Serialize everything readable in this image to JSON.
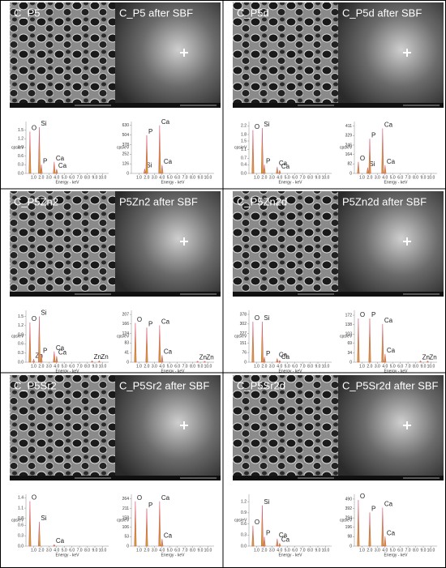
{
  "spectrum_axis": {
    "xlim": [
      0,
      10.8
    ],
    "xticks": [
      {
        "value": 1,
        "label": "1.0"
      },
      {
        "value": 2,
        "label": "2.0"
      },
      {
        "value": 3,
        "label": "3.0"
      },
      {
        "value": 4,
        "label": "4.0"
      },
      {
        "value": 5,
        "label": "5.0"
      },
      {
        "value": 6,
        "label": "6.0"
      },
      {
        "value": 7,
        "label": "7.0"
      },
      {
        "value": 8,
        "label": "8.0"
      },
      {
        "value": 9,
        "label": "9.0"
      },
      {
        "value": 10,
        "label": "10.0"
      }
    ],
    "xlabel": "Energy - keV",
    "ylabel": "cps/eV",
    "line_color": "#d9556e",
    "fill_color": "#c9a227"
  },
  "panels": [
    {
      "images": [
        {
          "label": "C_P5"
        },
        {
          "label": "C_P5 after SBF"
        }
      ],
      "spectra": [
        {
          "ylim": [
            0,
            1.8
          ],
          "yticks": [
            {
              "value": 0,
              "label": "0.0"
            },
            0.3,
            0.6,
            0.9,
            1.2,
            1.5
          ],
          "peaks": [
            {
              "label": "O",
              "energy": 0.52,
              "height": 1.45
            },
            {
              "label": "Si",
              "energy": 1.74,
              "height": 1.6
            },
            {
              "label": "P",
              "energy": 2.01,
              "height": 0.3
            },
            {
              "label": "Ca",
              "energy": 3.69,
              "height": 0.4
            },
            {
              "label": "Ca",
              "energy": 4.01,
              "height": 0.15
            }
          ]
        },
        {
          "ylim": [
            0,
            680
          ],
          "yticks": [
            0,
            126,
            252,
            378,
            504,
            630
          ],
          "peaks": [
            {
              "label": "Si",
              "energy": 1.74,
              "height": 60
            },
            {
              "label": "P",
              "energy": 2.01,
              "height": 500
            },
            {
              "label": "Ca",
              "energy": 3.69,
              "height": 630
            },
            {
              "label": "Ca",
              "energy": 4.01,
              "height": 110
            }
          ]
        }
      ]
    },
    {
      "images": [
        {
          "label": "C_P5d"
        },
        {
          "label": "C_P5d after SBF"
        }
      ],
      "spectra": [
        {
          "ylim": [
            0,
            2.4
          ],
          "yticks": [
            {
              "value": 0,
              "label": "0.0"
            },
            0.4,
            0.7,
            1.1,
            1.5,
            1.8,
            2.2
          ],
          "peaks": [
            {
              "label": "O",
              "energy": 0.52,
              "height": 2.0
            },
            {
              "label": "Si",
              "energy": 1.74,
              "height": 2.1
            },
            {
              "label": "P",
              "energy": 2.01,
              "height": 0.4
            },
            {
              "label": "Ca",
              "energy": 3.69,
              "height": 0.3
            },
            {
              "label": "Ca",
              "energy": 4.01,
              "height": 0.15
            }
          ]
        },
        {
          "ylim": [
            0,
            450
          ],
          "yticks": [
            0,
            82,
            164,
            246,
            329,
            411
          ],
          "peaks": [
            {
              "label": "O",
              "energy": 0.52,
              "height": 100
            },
            {
              "label": "Si",
              "energy": 1.74,
              "height": 50
            },
            {
              "label": "P",
              "energy": 2.01,
              "height": 300
            },
            {
              "label": "Ca",
              "energy": 3.69,
              "height": 390
            },
            {
              "label": "Ca",
              "energy": 4.01,
              "height": 70
            }
          ]
        }
      ]
    },
    {
      "images": [
        {
          "label": "C_P5Zn2"
        },
        {
          "label": "P5Zn2 after SBF"
        }
      ],
      "spectra": [
        {
          "ylim": [
            0,
            1.7
          ],
          "yticks": [
            {
              "value": 0,
              "label": "0.0"
            },
            0.3,
            0.6,
            0.9,
            1.2,
            1.5
          ],
          "peaks": [
            {
              "label": "O",
              "energy": 0.52,
              "height": 1.3
            },
            {
              "label": "Zn",
              "energy": 1.01,
              "height": 0.1
            },
            {
              "label": "Si",
              "energy": 1.74,
              "height": 1.5
            },
            {
              "label": "P",
              "energy": 2.01,
              "height": 0.25
            },
            {
              "label": "Ca",
              "energy": 3.69,
              "height": 0.35
            },
            {
              "label": "Ca",
              "energy": 4.01,
              "height": 0.2
            },
            {
              "label": "Zn",
              "energy": 8.64,
              "height": 0.05
            },
            {
              "label": "Zn",
              "energy": 9.57,
              "height": 0.05
            }
          ]
        },
        {
          "ylim": [
            0,
            225
          ],
          "yticks": [
            0,
            41,
            83,
            124,
            166,
            207
          ],
          "peaks": [
            {
              "label": "O",
              "energy": 0.52,
              "height": 170
            },
            {
              "label": "P",
              "energy": 2.01,
              "height": 150
            },
            {
              "label": "Ca",
              "energy": 3.69,
              "height": 160
            },
            {
              "label": "Ca",
              "energy": 4.01,
              "height": 30
            },
            {
              "label": "Zn",
              "energy": 8.64,
              "height": 5
            },
            {
              "label": "Zn",
              "energy": 9.57,
              "height": 5
            }
          ]
        }
      ]
    },
    {
      "images": [
        {
          "label": "C_P5Zn2d"
        },
        {
          "label": "P5Zn2d after SBF"
        }
      ],
      "spectra": [
        {
          "ylim": [
            0,
            410
          ],
          "yticks": [
            0,
            76,
            151,
            227,
            302,
            378
          ],
          "peaks": [
            {
              "label": "O",
              "energy": 0.52,
              "height": 320
            },
            {
              "label": "Si",
              "energy": 1.74,
              "height": 320
            },
            {
              "label": "P",
              "energy": 2.01,
              "height": 40
            },
            {
              "label": "Ca",
              "energy": 3.69,
              "height": 30
            },
            {
              "label": "Ca",
              "energy": 4.01,
              "height": 15
            }
          ]
        },
        {
          "ylim": [
            0,
            190
          ],
          "yticks": [
            0,
            34,
            69,
            103,
            138,
            172
          ],
          "peaks": [
            {
              "label": "O",
              "energy": 0.52,
              "height": 160
            },
            {
              "label": "P",
              "energy": 2.01,
              "height": 160
            },
            {
              "label": "Ca",
              "energy": 3.69,
              "height": 140
            },
            {
              "label": "Ca",
              "energy": 4.01,
              "height": 30
            },
            {
              "label": "Zn",
              "energy": 8.64,
              "height": 5
            },
            {
              "label": "Zn",
              "energy": 9.57,
              "height": 5
            }
          ]
        }
      ]
    },
    {
      "images": [
        {
          "label": "C_P5Sr2"
        },
        {
          "label": "C_P5Sr2 after SBF"
        }
      ],
      "spectra": [
        {
          "ylim": [
            0,
            1.5
          ],
          "yticks": [
            {
              "value": 0,
              "label": "0.0"
            },
            0.3,
            0.6,
            0.8,
            1.1,
            1.4
          ],
          "peaks": [
            {
              "label": "O",
              "energy": 0.52,
              "height": 1.3
            },
            {
              "label": "Si",
              "energy": 1.74,
              "height": 0.7
            },
            {
              "label": "Ca",
              "energy": 3.69,
              "height": 0.05
            }
          ]
        },
        {
          "ylim": [
            0,
            290
          ],
          "yticks": [
            0,
            53,
            106,
            158,
            211,
            264
          ],
          "peaks": [
            {
              "label": "O",
              "energy": 0.52,
              "height": 250
            },
            {
              "label": "P",
              "energy": 2.01,
              "height": 210
            },
            {
              "label": "Ca",
              "energy": 3.69,
              "height": 250
            },
            {
              "label": "Ca",
              "energy": 4.01,
              "height": 40
            }
          ]
        }
      ]
    },
    {
      "images": [
        {
          "label": "C_P5Sr2d"
        },
        {
          "label": "C_P5Sr2d after SBF"
        }
      ],
      "spectra": [
        {
          "ylim": [
            0,
            1.4
          ],
          "yticks": [
            {
              "value": 0,
              "label": "0.0"
            },
            0.3,
            0.6,
            0.9,
            1.2
          ],
          "peaks": [
            {
              "label": "O",
              "energy": 0.52,
              "height": 0.55
            },
            {
              "label": "Si",
              "energy": 1.74,
              "height": 1.1
            },
            {
              "label": "P",
              "energy": 2.01,
              "height": 0.25
            },
            {
              "label": "Ca",
              "energy": 3.69,
              "height": 0.2
            },
            {
              "label": "Ca",
              "energy": 4.01,
              "height": 0.08
            }
          ]
        },
        {
          "ylim": [
            0,
            540
          ],
          "yticks": [
            0,
            98,
            196,
            294,
            392,
            490
          ],
          "peaks": [
            {
              "label": "O",
              "energy": 0.52,
              "height": 480
            },
            {
              "label": "P",
              "energy": 2.01,
              "height": 350
            },
            {
              "label": "Ca",
              "energy": 3.69,
              "height": 400
            },
            {
              "label": "Ca",
              "energy": 4.01,
              "height": 100
            }
          ]
        }
      ]
    }
  ]
}
